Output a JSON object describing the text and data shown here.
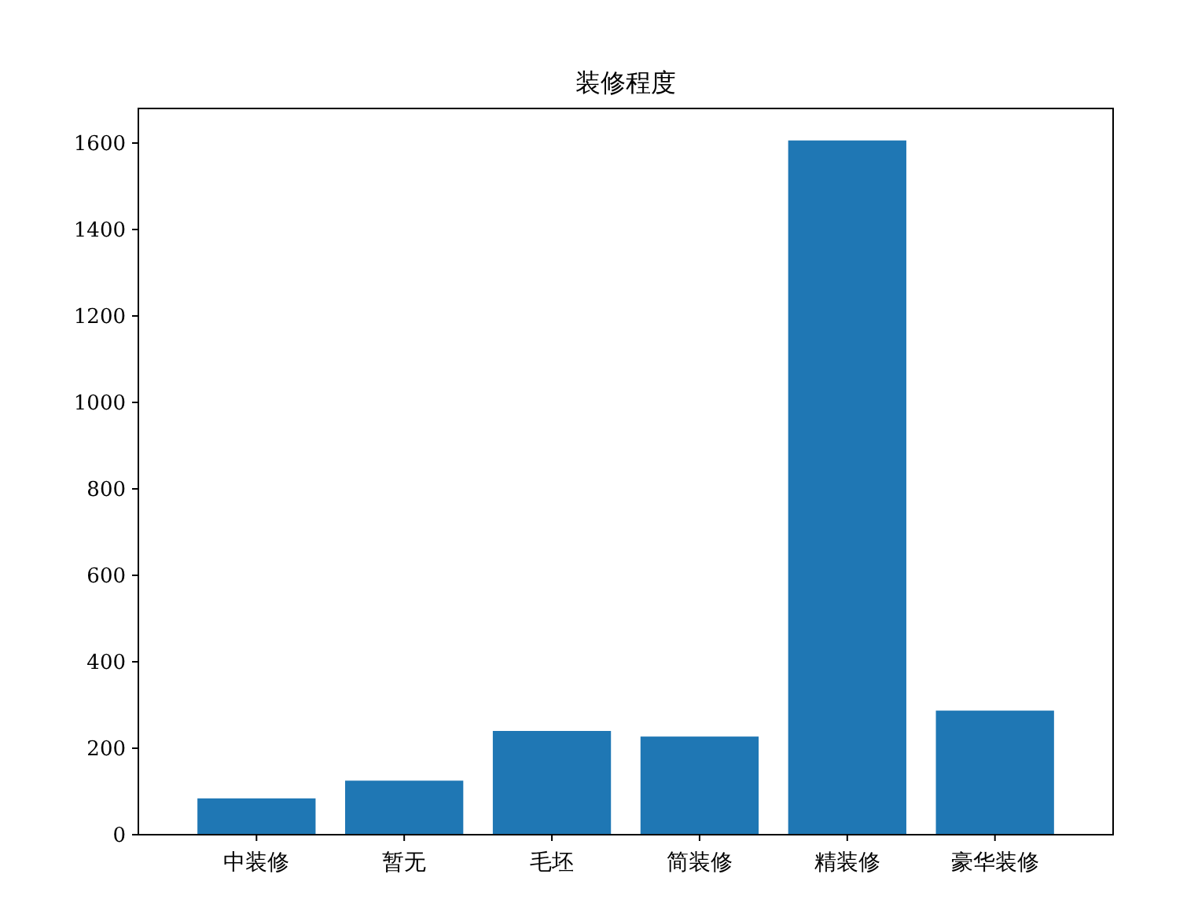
{
  "chart_data": {
    "type": "bar",
    "title": "装修程度",
    "categories": [
      "中装修",
      "暂无",
      "毛坯",
      "简装修",
      "精装修",
      "豪华装修"
    ],
    "values": [
      84,
      125,
      240,
      227,
      1606,
      287
    ],
    "color": "#1f77b4",
    "ylim": [
      0,
      1680
    ],
    "yticks": [
      0,
      200,
      400,
      600,
      800,
      1000,
      1200,
      1400,
      1600
    ],
    "grid": false
  }
}
